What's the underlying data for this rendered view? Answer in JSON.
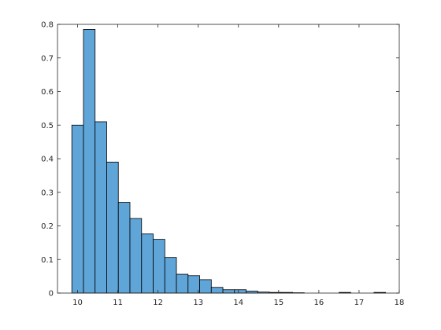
{
  "chart_data": {
    "type": "bar",
    "histogram": true,
    "title": "",
    "xlabel": "",
    "ylabel": "",
    "xlim": [
      9.5,
      18
    ],
    "ylim": [
      0,
      0.8
    ],
    "x_ticks": [
      10,
      11,
      12,
      13,
      14,
      15,
      16,
      17,
      18
    ],
    "y_ticks": [
      0,
      0.1,
      0.2,
      0.3,
      0.4,
      0.5,
      0.6,
      0.7,
      0.8
    ],
    "grid": false,
    "box": true,
    "bar_color": "#5fa5d8",
    "edge_color": "#000000",
    "bin_width": 0.289,
    "bins": [
      {
        "x0": 9.857,
        "x1": 10.146,
        "value": 0.5
      },
      {
        "x0": 10.146,
        "x1": 10.435,
        "value": 0.785
      },
      {
        "x0": 10.435,
        "x1": 10.724,
        "value": 0.51
      },
      {
        "x0": 10.724,
        "x1": 11.013,
        "value": 0.39
      },
      {
        "x0": 11.013,
        "x1": 11.302,
        "value": 0.27
      },
      {
        "x0": 11.302,
        "x1": 11.591,
        "value": 0.222
      },
      {
        "x0": 11.591,
        "x1": 11.88,
        "value": 0.176
      },
      {
        "x0": 11.88,
        "x1": 12.169,
        "value": 0.16
      },
      {
        "x0": 12.169,
        "x1": 12.458,
        "value": 0.106
      },
      {
        "x0": 12.458,
        "x1": 12.747,
        "value": 0.056
      },
      {
        "x0": 12.747,
        "x1": 13.036,
        "value": 0.052
      },
      {
        "x0": 13.036,
        "x1": 13.325,
        "value": 0.04
      },
      {
        "x0": 13.325,
        "x1": 13.614,
        "value": 0.017
      },
      {
        "x0": 13.614,
        "x1": 13.903,
        "value": 0.01
      },
      {
        "x0": 13.903,
        "x1": 14.192,
        "value": 0.01
      },
      {
        "x0": 14.192,
        "x1": 14.481,
        "value": 0.006
      },
      {
        "x0": 14.481,
        "x1": 14.77,
        "value": 0.003
      },
      {
        "x0": 14.77,
        "x1": 15.059,
        "value": 0.002
      },
      {
        "x0": 15.059,
        "x1": 15.348,
        "value": 0.002
      },
      {
        "x0": 15.348,
        "x1": 15.637,
        "value": 0.001
      },
      {
        "x0": 16.504,
        "x1": 16.793,
        "value": 0.002
      },
      {
        "x0": 17.371,
        "x1": 17.66,
        "value": 0.002
      }
    ]
  }
}
